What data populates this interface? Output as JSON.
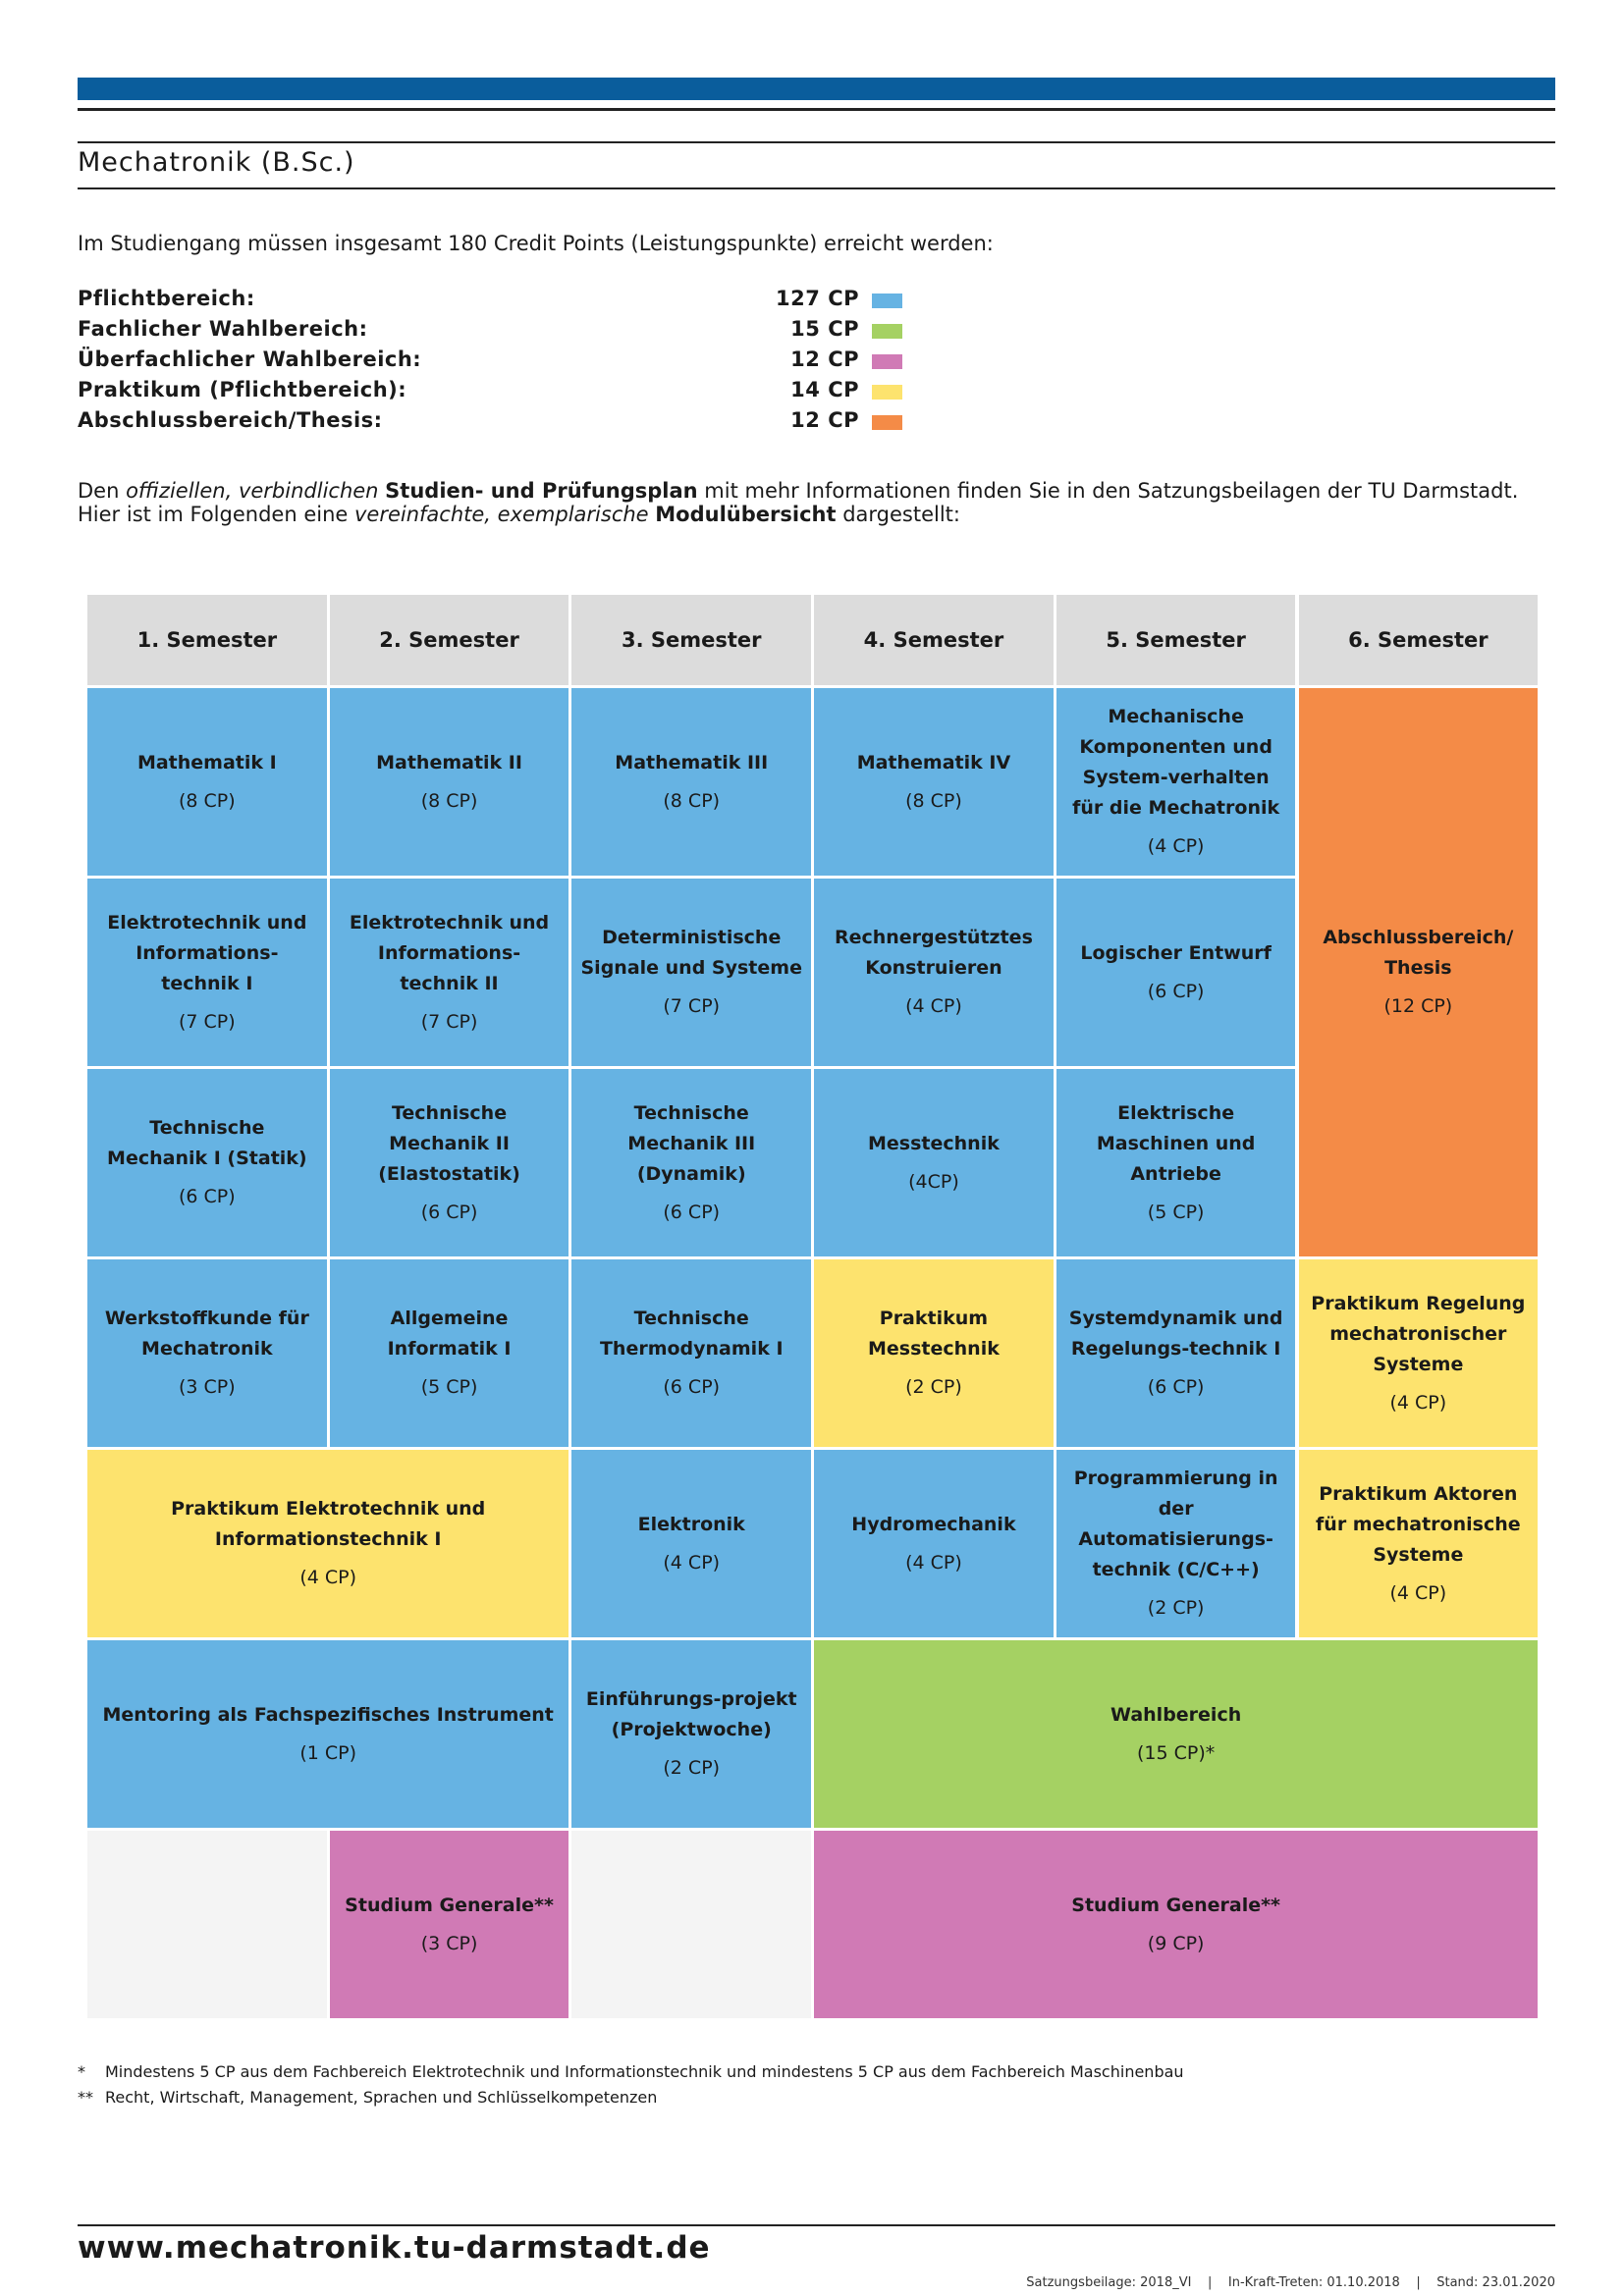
{
  "title": "Mechatronik (B.Sc.)",
  "intro": "Im Studiengang müssen insgesamt 180 Credit Points (Leistungspunkte) erreicht werden:",
  "cp_summary": [
    {
      "label": "Pflichtbereich:",
      "value": "127 CP",
      "color": "#66b3e3"
    },
    {
      "label": "Fachlicher Wahlbereich:",
      "value": "15 CP",
      "color": "#a5d163"
    },
    {
      "label": "Überfachlicher Wahlbereich:",
      "value": "12 CP",
      "color": "#d07ab5"
    },
    {
      "label": "Praktikum (Pflichtbereich):",
      "value": "14 CP",
      "color": "#fde36e"
    },
    {
      "label": "Abschlussbereich/Thesis:",
      "value": "12 CP",
      "color": "#f48b47"
    }
  ],
  "description": {
    "l1_a": "Den ",
    "l1_b": "offiziellen, verbindlichen",
    "l1_c": " ",
    "l1_d": "Studien- und Prüfungsplan",
    "l1_e": " mit mehr Informationen finden Sie in den Satzungsbeilagen der TU Darmstadt.",
    "l2_a": "Hier ist im Folgenden eine ",
    "l2_b": "vereinfachte, exemplarische",
    "l2_c": " ",
    "l2_d": "Modulübersicht",
    "l2_e": " dargestellt:"
  },
  "semesters": [
    "1. Semester",
    "2. Semester",
    "3. Semester",
    "4. Semester",
    "5. Semester",
    "6. Semester"
  ],
  "modules": [
    {
      "name": "Mathematik I",
      "cp": "(8 CP)",
      "color": "blue"
    },
    {
      "name": "Mathematik II",
      "cp": "(8 CP)",
      "color": "blue"
    },
    {
      "name": "Mathematik III",
      "cp": "(8 CP)",
      "color": "blue"
    },
    {
      "name": "Mathematik IV",
      "cp": "(8 CP)",
      "color": "blue"
    },
    {
      "name": "Mechanische\nKomponenten und\nSystem-verhalten\nfür die Mechatronik",
      "cp": "(4 CP)",
      "color": "blue"
    },
    {
      "name": "Abschlussbereich/\nThesis",
      "cp": "(12 CP)",
      "color": "orange"
    },
    {
      "name": "Elektrotechnik und\nInformations-\ntechnik I",
      "cp": "(7 CP)",
      "color": "blue"
    },
    {
      "name": "Elektrotechnik und\nInformations-\ntechnik II",
      "cp": "(7 CP)",
      "color": "blue"
    },
    {
      "name": "Deterministische\nSignale und Systeme",
      "cp": "(7 CP)",
      "color": "blue"
    },
    {
      "name": "Rechnergestütztes\nKonstruieren",
      "cp": "(4 CP)",
      "color": "blue"
    },
    {
      "name": "Logischer Entwurf",
      "cp": "(6 CP)",
      "color": "blue"
    },
    {
      "name": "Technische\nMechanik I (Statik)",
      "cp": "(6 CP)",
      "color": "blue"
    },
    {
      "name": "Technische\nMechanik II\n(Elastostatik)",
      "cp": "(6 CP)",
      "color": "blue"
    },
    {
      "name": "Technische\nMechanik III\n(Dynamik)",
      "cp": "(6 CP)",
      "color": "blue"
    },
    {
      "name": "Messtechnik",
      "cp": "(4CP)",
      "color": "blue"
    },
    {
      "name": "Elektrische\nMaschinen und\nAntriebe",
      "cp": "(5 CP)",
      "color": "blue"
    },
    {
      "name": "Werkstoffkunde für\nMechatronik",
      "cp": "(3 CP)",
      "color": "blue"
    },
    {
      "name": "Allgemeine\nInformatik I",
      "cp": "(5 CP)",
      "color": "blue"
    },
    {
      "name": "Technische\nThermodynamik I",
      "cp": "(6 CP)",
      "color": "blue"
    },
    {
      "name": "Praktikum\nMesstechnik",
      "cp": "(2 CP)",
      "color": "yellow"
    },
    {
      "name": "Systemdynamik und\nRegelungs-technik I",
      "cp": "(6 CP)",
      "color": "blue"
    },
    {
      "name": "Praktikum Regelung\nmechatronischer\nSysteme",
      "cp": "(4 CP)",
      "color": "yellow"
    },
    {
      "name": "Praktikum Elektrotechnik und\nInformationstechnik I",
      "cp": "(4 CP)",
      "color": "yellow"
    },
    {
      "name": "Elektronik",
      "cp": "(4 CP)",
      "color": "blue"
    },
    {
      "name": "Hydromechanik",
      "cp": "(4 CP)",
      "color": "blue"
    },
    {
      "name": "Programmierung in\nder\nAutomatisierungs-\ntechnik (C/C++)",
      "cp": "(2 CP)",
      "color": "blue"
    },
    {
      "name": "Praktikum Aktoren\nfür mechatronische\nSysteme",
      "cp": "(4 CP)",
      "color": "yellow"
    },
    {
      "name": "Mentoring als Fachspezifisches Instrument",
      "cp": "(1 CP)",
      "color": "blue"
    },
    {
      "name": "Einführungs-projekt\n(Projektwoche)",
      "cp": "(2 CP)",
      "color": "blue"
    },
    {
      "name": "Wahlbereich",
      "cp": "(15 CP)*",
      "color": "green"
    },
    {
      "name": "",
      "cp": "",
      "color": "empty"
    },
    {
      "name": "Studium Generale**",
      "cp": "(3 CP)",
      "color": "pink"
    },
    {
      "name": "",
      "cp": "",
      "color": "empty"
    },
    {
      "name": "Studium Generale**",
      "cp": "(9 CP)",
      "color": "pink"
    }
  ],
  "footnotes": [
    {
      "mark": "*",
      "text": "Mindestens 5 CP aus dem Fachbereich Elektrotechnik und Informationstechnik und mindestens 5 CP aus dem Fachbereich Maschinenbau"
    },
    {
      "mark": "**",
      "text": "Recht, Wirtschaft, Management, Sprachen und Schlüsselkompetenzen"
    }
  ],
  "footer": {
    "url": "www.mechatronik.tu-darmstadt.de",
    "meta": "Satzungsbeilage: 2018_VI    |    In-Kraft-Treten: 01.10.2018    |    Stand: 23.01.2020"
  }
}
